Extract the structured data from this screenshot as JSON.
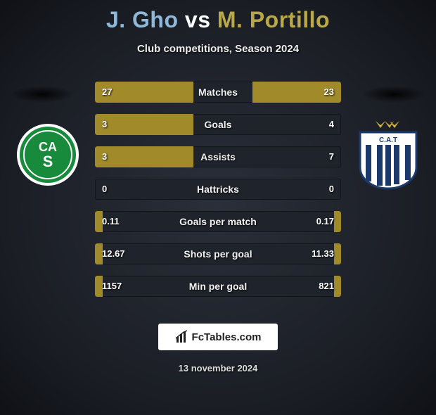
{
  "title": {
    "player1": "J. Gho",
    "vs": "vs",
    "player2": "M. Portillo"
  },
  "subtitle": "Club competitions, Season 2024",
  "colors": {
    "p1_bar": "#a08a2a",
    "p2_bar": "#a08a2a",
    "row_bg": "#1f232b",
    "title_p1": "#8fb8d8",
    "title_p2": "#b8a84a"
  },
  "badges": {
    "left": {
      "circle_fill": "#178a3c",
      "circle_stroke": "#ffffff",
      "text": "CAS",
      "text_color": "#ffffff"
    },
    "right": {
      "shield_fill": "#ffffff",
      "stripe_color": "#1b3a6b",
      "text": "C.A.T",
      "star_color": "#d4b83a"
    }
  },
  "stats": [
    {
      "label": "Matches",
      "left_val": "27",
      "right_val": "23",
      "left_pct": 40,
      "right_pct": 36
    },
    {
      "label": "Goals",
      "left_val": "3",
      "right_val": "4",
      "left_pct": 40,
      "right_pct": 0
    },
    {
      "label": "Assists",
      "left_val": "3",
      "right_val": "7",
      "left_pct": 40,
      "right_pct": 0
    },
    {
      "label": "Hattricks",
      "left_val": "0",
      "right_val": "0",
      "left_pct": 0,
      "right_pct": 0
    },
    {
      "label": "Goals per match",
      "left_val": "0.11",
      "right_val": "0.17",
      "left_pct": 3,
      "right_pct": 3
    },
    {
      "label": "Shots per goal",
      "left_val": "12.67",
      "right_val": "11.33",
      "left_pct": 3,
      "right_pct": 3
    },
    {
      "label": "Min per goal",
      "left_val": "1157",
      "right_val": "821",
      "left_pct": 3,
      "right_pct": 3
    }
  ],
  "footer": {
    "site": "FcTables.com",
    "date": "13 november 2024"
  }
}
